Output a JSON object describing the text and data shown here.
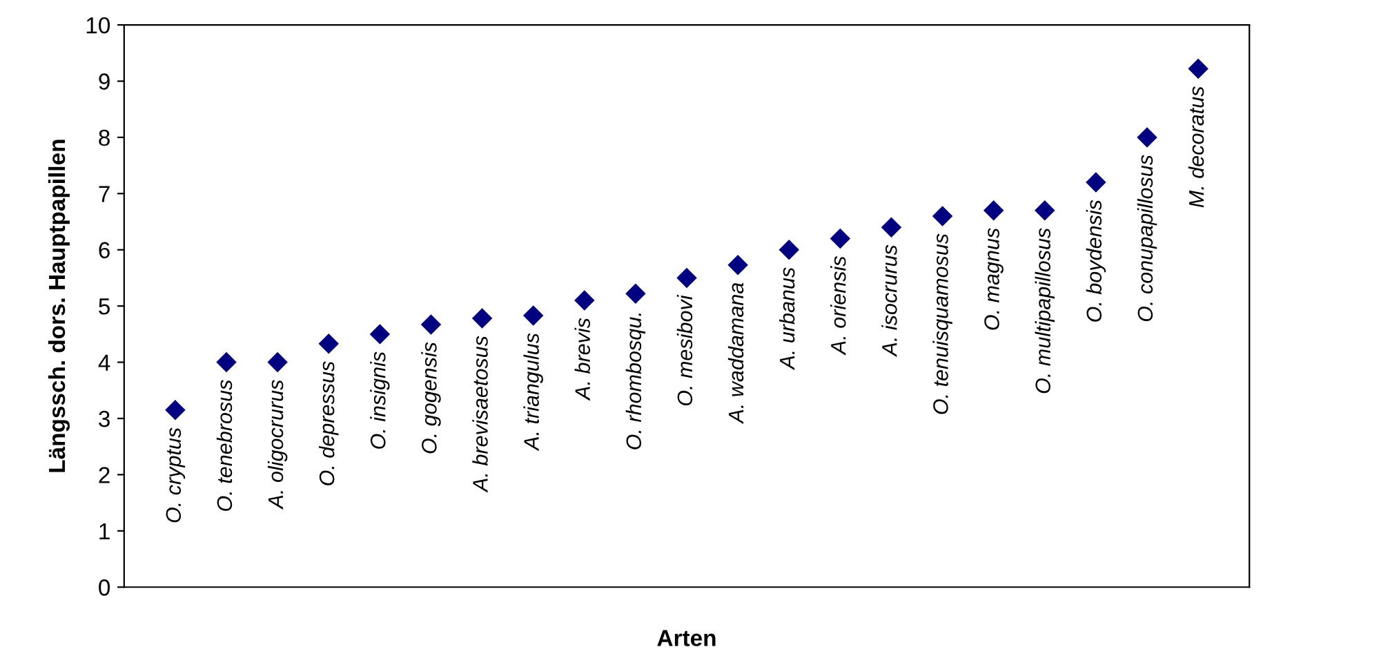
{
  "chart_data": {
    "type": "scatter",
    "xlabel": "Arten",
    "ylabel": "Längssch. dors. Hauptpapillen",
    "categories": [
      "O. cryptus",
      "O. tenebrosus",
      "A. oligocrurus",
      "O. depressus",
      "O. insignis",
      "O. gogensis",
      "A. brevisaetosus",
      "A. triangulus",
      "A. brevis",
      "O. rhombosqu.",
      "O. mesibovi",
      "A. waddamana",
      "A. urbanus",
      "A. oriensis",
      "A. isocrurus",
      "O. tenuisquamosus",
      "O. magnus",
      "O. multipapillosus",
      "O. boydensis",
      "O. conupapillosus",
      "M. decoratus"
    ],
    "series": [
      {
        "color": "#000080",
        "values": [
          3.15,
          4.0,
          4.0,
          4.33,
          4.5,
          4.67,
          4.78,
          4.83,
          5.1,
          5.22,
          5.5,
          5.73,
          6.0,
          6.2,
          6.4,
          6.6,
          6.7,
          6.7,
          7.2,
          8.0,
          9.22
        ]
      }
    ],
    "ylim": [
      0,
      10
    ],
    "yticks": [
      0,
      1,
      2,
      3,
      4,
      5,
      6,
      7,
      8,
      9,
      10
    ],
    "marker": "diamond",
    "grid": false,
    "legend": false
  }
}
